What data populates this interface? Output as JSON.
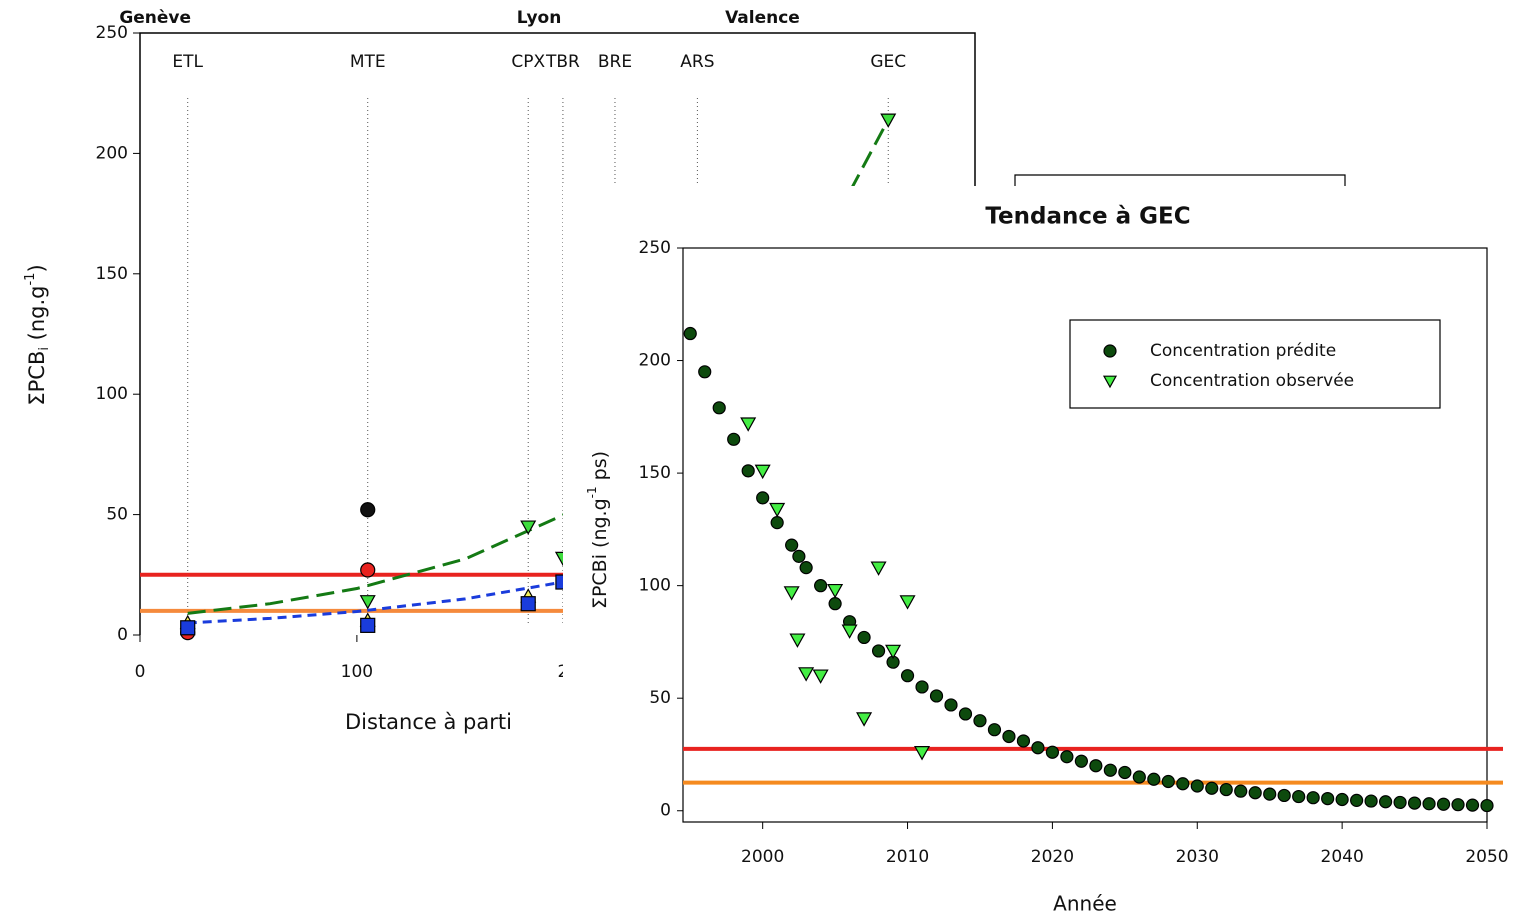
{
  "chart_data": [
    {
      "type": "scatter",
      "x_label": "Distance à parti",
      "y_label": {
        "text": "ΣPCB",
        "sub": "i",
        "mid": " (ng.g",
        "sup": "-1",
        "end": ")"
      },
      "xlim": [
        0,
        385
      ],
      "ylim": [
        0,
        250
      ],
      "xticks": [
        0,
        100,
        200
      ],
      "yticks": [
        0,
        50,
        100,
        150,
        200,
        250
      ],
      "cities": [
        {
          "label": "Genève",
          "x": 7
        },
        {
          "label": "Lyon",
          "x": 184
        },
        {
          "label": "Valence",
          "x": 287
        }
      ],
      "stations": [
        {
          "label": "ETL",
          "x": 22
        },
        {
          "label": "MTE",
          "x": 105
        },
        {
          "label": "CPX",
          "x": 179
        },
        {
          "label": "TBR",
          "x": 195
        },
        {
          "label": "BRE",
          "x": 219
        },
        {
          "label": "ARS",
          "x": 257
        },
        {
          "label": "GEC",
          "x": 345
        }
      ],
      "series": [
        {
          "color": "#111111",
          "marker": "circle",
          "x": [
            105
          ],
          "values": [
            52
          ]
        },
        {
          "color": "#e8231f",
          "marker": "circle",
          "x": [
            22,
            105
          ],
          "values": [
            1,
            27
          ]
        },
        {
          "color": "#3ddc3d",
          "marker": "triangle-down",
          "x": [
            105,
            179,
            195,
            345
          ],
          "values": [
            14,
            45,
            32,
            214
          ]
        },
        {
          "color": "#f2ef5a",
          "marker": "triangle-up",
          "x": [
            22,
            105,
            179
          ],
          "values": [
            5,
            6,
            16
          ]
        },
        {
          "color": "#1a3cdc",
          "marker": "square",
          "x": [
            22,
            105,
            179,
            195
          ],
          "values": [
            3,
            4,
            13,
            22
          ]
        }
      ],
      "curves": [
        {
          "color": "#147a14",
          "style": "long-dash",
          "x": [
            22,
            60,
            100,
            150,
            200,
            250,
            300,
            345
          ],
          "values": [
            9,
            13,
            19.3,
            31.6,
            51.8,
            84,
            138,
            214
          ]
        },
        {
          "color": "#1a3cdc",
          "style": "short-dash",
          "x": [
            22,
            60,
            100,
            150,
            195
          ],
          "values": [
            5,
            6.9,
            9.75,
            15,
            22
          ]
        }
      ],
      "hlines": [
        {
          "value": 25,
          "color": "#e8231f"
        },
        {
          "value": 10,
          "color": "#f58a3c"
        }
      ]
    },
    {
      "type": "scatter",
      "title": "Tendance à GEC",
      "x_label": "Année",
      "y_label": {
        "text": "ΣPCBi (ng.g",
        "sup": "-1",
        "end": " ps)"
      },
      "xlim": [
        1994.5,
        2050
      ],
      "ylim": [
        -5,
        250
      ],
      "xticks": [
        2000,
        2010,
        2020,
        2030,
        2040,
        2050
      ],
      "yticks": [
        0,
        50,
        100,
        150,
        200,
        250
      ],
      "legend": "top-right",
      "series": [
        {
          "name": "Concentration prédite",
          "color": "#0d4a0d",
          "marker": "circle",
          "x": [
            1995,
            1996,
            1997,
            1998,
            1999,
            2000,
            2001,
            2002,
            2002.5,
            2003,
            2004,
            2005,
            2006,
            2007,
            2008,
            2009,
            2010,
            2011,
            2012,
            2013,
            2014,
            2015,
            2016,
            2017,
            2018,
            2019,
            2020,
            2021,
            2022,
            2023,
            2024,
            2025,
            2026,
            2027,
            2028,
            2029,
            2030,
            2031,
            2032,
            2033,
            2034,
            2035,
            2036,
            2037,
            2038,
            2039,
            2040,
            2041,
            2042,
            2043,
            2044,
            2045,
            2046,
            2047,
            2048,
            2049,
            2050
          ],
          "values": [
            212,
            195,
            179,
            165,
            151,
            139,
            128,
            118,
            113,
            108,
            100,
            92,
            84,
            77,
            71,
            66,
            60,
            55,
            51,
            47,
            43,
            40,
            36,
            33,
            31,
            28,
            26,
            24,
            22,
            20,
            18,
            17,
            15,
            14,
            13,
            12,
            11,
            10,
            9.4,
            8.7,
            8,
            7.4,
            6.8,
            6.3,
            5.8,
            5.4,
            5,
            4.6,
            4.3,
            4,
            3.7,
            3.4,
            3.1,
            2.9,
            2.7,
            2.5,
            2.3
          ]
        },
        {
          "name": "Concentration observée",
          "color": "#44ee44",
          "marker": "triangle-down",
          "x": [
            1999,
            2000,
            2001,
            2002,
            2002.4,
            2003,
            2004,
            2005,
            2006,
            2007,
            2008,
            2009,
            2010,
            2011
          ],
          "values": [
            172,
            151,
            134,
            97,
            76,
            61,
            60,
            98,
            80,
            41,
            108,
            71,
            93,
            26
          ]
        }
      ],
      "hlines": [
        {
          "value": 27.5,
          "color": "#e8231f"
        },
        {
          "value": 12.5,
          "color": "#f58a1f"
        }
      ]
    }
  ]
}
